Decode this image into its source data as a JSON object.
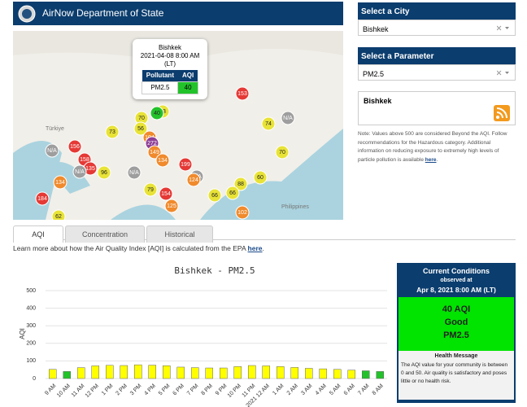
{
  "header": {
    "title": "AirNow Department of State"
  },
  "map": {
    "labels": [
      "Türkiye",
      "Philippines"
    ],
    "popup": {
      "city": "Bishkek",
      "time": "2021-04-08 8:00 AM",
      "zone": "(LT)",
      "col1": "Pollutant",
      "col2": "AQI",
      "pollutant": "PM2.5",
      "aqi": 40
    },
    "markers": [
      {
        "label": 153,
        "color": "#e53935"
      },
      {
        "label": 53,
        "color": "#e8e337"
      },
      {
        "label": 40,
        "color": "#22c22a"
      },
      {
        "label": 70,
        "color": "#e8e337"
      },
      {
        "label": 56,
        "color": "#e8e337"
      },
      {
        "label": 73,
        "color": "#e8e337"
      },
      {
        "label": 74,
        "color": "#e8e337"
      },
      {
        "label": "N/A",
        "color": "#9e9e9e"
      },
      {
        "label": 104,
        "color": "#f08a2c"
      },
      {
        "label": 272,
        "color": "#8e3f96"
      },
      {
        "label": 149,
        "color": "#f08a2c"
      },
      {
        "label": 156,
        "color": "#e53935"
      },
      {
        "label": "N/A",
        "color": "#9e9e9e"
      },
      {
        "label": 158,
        "color": "#e53935"
      },
      {
        "label": 134,
        "color": "#f08a2c"
      },
      {
        "label": 199,
        "color": "#e53935"
      },
      {
        "label": 70,
        "color": "#e8e337"
      },
      {
        "label": 135,
        "color": "#e53935"
      },
      {
        "label": "N/A",
        "color": "#9e9e9e"
      },
      {
        "label": 96,
        "color": "#e8e337"
      },
      {
        "label": "N/A",
        "color": "#9e9e9e"
      },
      {
        "label": "N/A",
        "color": "#9e9e9e"
      },
      {
        "label": 124,
        "color": "#f08a2c"
      },
      {
        "label": 60,
        "color": "#e8e337"
      },
      {
        "label": 88,
        "color": "#e8e337"
      },
      {
        "label": 134,
        "color": "#f08a2c"
      },
      {
        "label": 79,
        "color": "#e8e337"
      },
      {
        "label": 154,
        "color": "#e53935"
      },
      {
        "label": 66,
        "color": "#e8e337"
      },
      {
        "label": 66,
        "color": "#e8e337"
      },
      {
        "label": 184,
        "color": "#e53935"
      },
      {
        "label": 125,
        "color": "#f08a2c"
      },
      {
        "label": 102,
        "color": "#f08a2c"
      },
      {
        "label": 62,
        "color": "#e8e337"
      }
    ]
  },
  "sidebar": {
    "city_header": "Select a City",
    "city": "Bishkek",
    "param_header": "Select a Parameter",
    "param": "PM2.5",
    "feed_title": "Bishkek",
    "note_before": "Note: Values above 500 are considered Beyond the AQI. Follow recommendations for the Hazardous category. Additional information on reducing exposure to extremely high levels of particle pollution is available ",
    "note_link": "here",
    "note_after": "."
  },
  "tabs": [
    "AQI",
    "Concentration",
    "Historical"
  ],
  "learn": {
    "before": "Learn more about how the Air Quality Index [AQI] is calculated from the EPA ",
    "link": "here",
    "after": "."
  },
  "chart_data": {
    "type": "bar",
    "title": "Bishkek - PM2.5",
    "y_label": "AQI",
    "categories": [
      "9 AM",
      "10 AM",
      "11 AM",
      "12 PM",
      "1 PM",
      "2 PM",
      "3 PM",
      "4 PM",
      "5 PM",
      "6 PM",
      "7 PM",
      "8 PM",
      "9 PM",
      "10 PM",
      "11 PM",
      "2021 12 AM",
      "1 AM",
      "2 AM",
      "3 AM",
      "4 AM",
      "5 AM",
      "6 AM",
      "7 AM",
      "8 AM"
    ],
    "values": [
      52,
      40,
      62,
      72,
      75,
      74,
      78,
      76,
      73,
      65,
      62,
      60,
      60,
      68,
      74,
      72,
      68,
      63,
      58,
      55,
      52,
      48,
      44,
      40
    ],
    "colors": [
      "#ffff00",
      "#22c22a",
      "#ffff00",
      "#ffff00",
      "#ffff00",
      "#ffff00",
      "#ffff00",
      "#ffff00",
      "#ffff00",
      "#ffff00",
      "#ffff00",
      "#ffff00",
      "#ffff00",
      "#ffff00",
      "#ffff00",
      "#ffff00",
      "#ffff00",
      "#ffff00",
      "#ffff00",
      "#ffff00",
      "#ffff00",
      "#ffff00",
      "#22c22a",
      "#22c22a"
    ],
    "ylim": [
      0,
      500
    ],
    "yticks": [
      0,
      100,
      200,
      300,
      400,
      500
    ],
    "grid": true
  },
  "current": {
    "title": "Current Conditions",
    "observed": "observed at",
    "time": "Apr 8, 2021 8:00 AM (LT)",
    "aqi": "40 AQI",
    "category": "Good",
    "pollutant": "PM2.5",
    "msg_title": "Health Message",
    "msg": "The AQI value for your community is between 0 and 50. Air quality is satisfactory and poses little or no health risk."
  }
}
